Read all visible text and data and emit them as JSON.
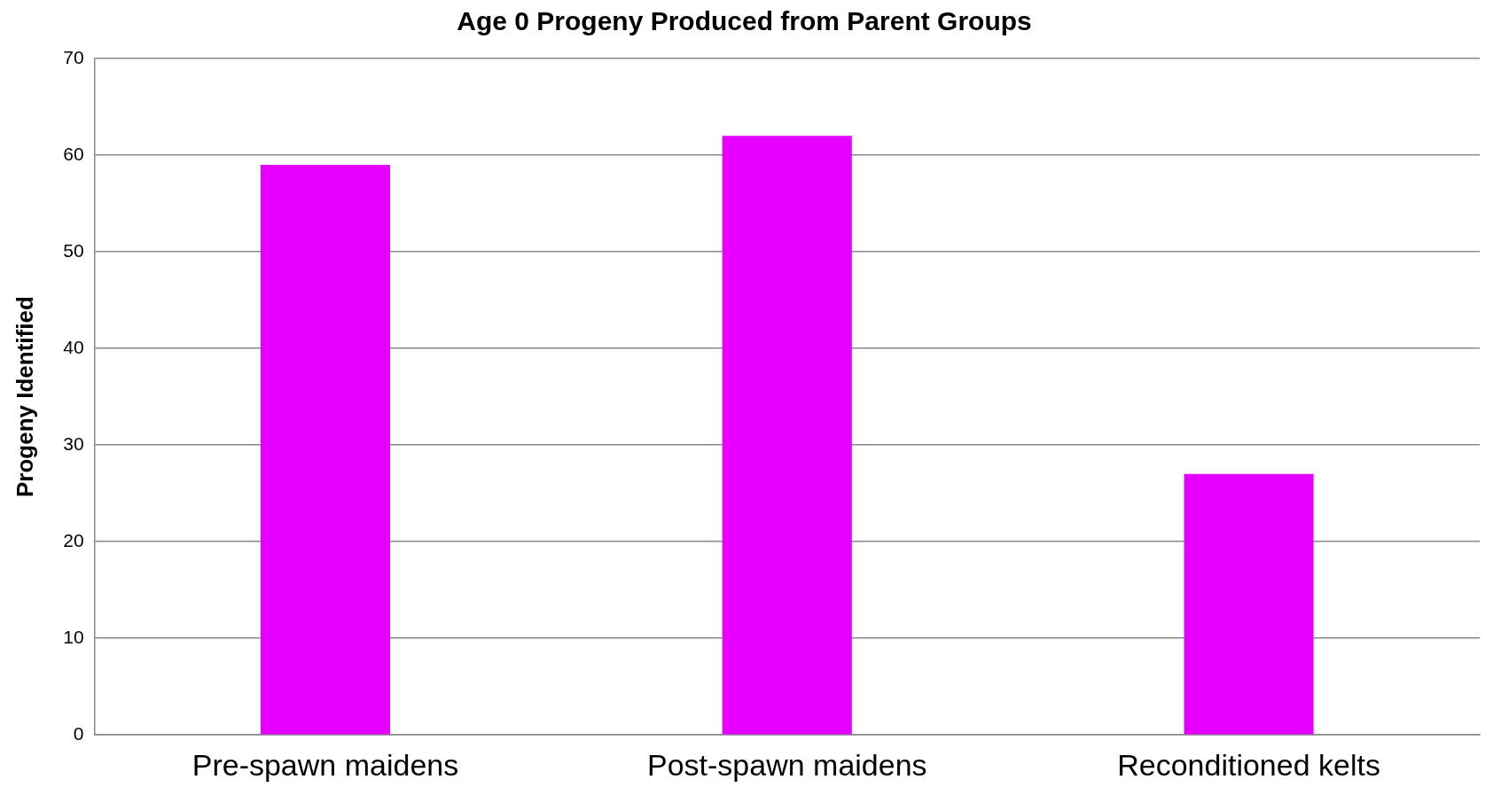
{
  "chart_data": {
    "type": "bar",
    "title": "Age 0 Progeny Produced from Parent Groups",
    "ylabel": "Progeny Identified",
    "categories": [
      "Pre-spawn maidens",
      "Post-spawn maidens",
      "Reconditioned kelts"
    ],
    "values": [
      59,
      62,
      27
    ],
    "color": "#e600ff",
    "ylim": [
      0,
      70
    ],
    "yticks": [
      0,
      10,
      20,
      30,
      40,
      50,
      60,
      70
    ],
    "grid": "y"
  }
}
